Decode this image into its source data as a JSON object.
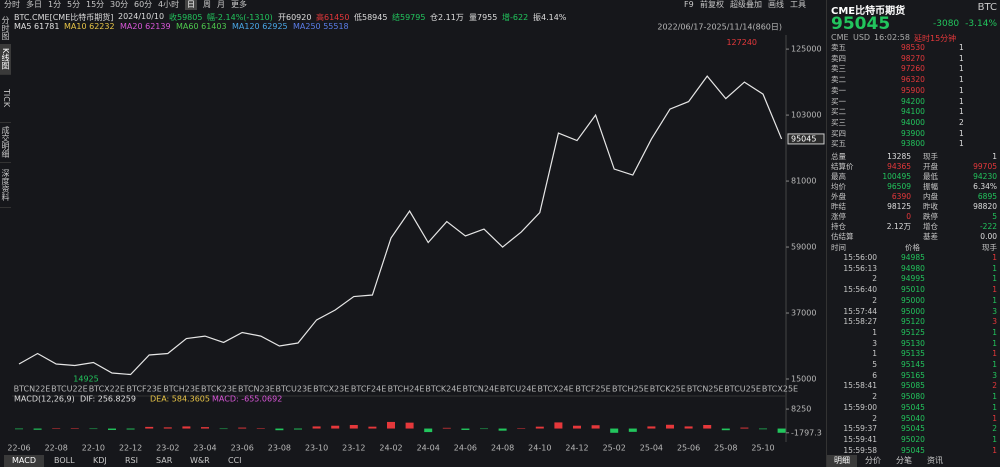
{
  "toolbar": {
    "periods": [
      "分时",
      "多日",
      "1分",
      "5分",
      "15分",
      "30分",
      "60分",
      "4小时",
      "日",
      "周",
      "月",
      "更多"
    ],
    "tools": [
      "F9",
      "前复权",
      "超级叠加",
      "画线",
      "工具"
    ]
  },
  "side_tabs": [
    "分时图",
    "K线图",
    "TICK",
    "成交明细",
    "深度资料"
  ],
  "info_line": [
    "BTC.CME[CME比特币期货]",
    "2024/10/10",
    "收59805",
    "幅-2.14%(-1310)",
    "开60920",
    "高61450",
    "低58945",
    "结59795",
    "仓2.11万",
    "量7955",
    "增-622",
    "振4.14%"
  ],
  "ma_line": [
    "MA5 61781",
    "MA10 62232",
    "MA20 62139",
    "MA60 61403",
    "MA120 62925",
    "MA250 55518"
  ],
  "chart_data": [
    {
      "type": "line",
      "date_range": "2022/06/17-2025/11/14(860日)",
      "color": "#e6e6e6",
      "categories": [
        "22-06",
        null,
        "22-08",
        null,
        "22-10",
        null,
        "22-12",
        null,
        "23-02",
        null,
        "23-04",
        null,
        "23-06",
        null,
        "23-08",
        null,
        "23-10",
        null,
        "23-12",
        null,
        "24-02",
        null,
        "24-04",
        null,
        "24-06",
        null,
        "24-08",
        null,
        "24-10",
        null,
        "24-12",
        null,
        "25-02",
        null,
        "25-04",
        null,
        "25-06",
        null,
        "25-08",
        null,
        "25-10",
        null
      ],
      "values": [
        20000,
        23500,
        20000,
        19500,
        20500,
        17000,
        16500,
        23000,
        23500,
        28500,
        29300,
        27200,
        30500,
        29300,
        26000,
        27000,
        34700,
        38000,
        42500,
        43000,
        62000,
        71000,
        60500,
        67500,
        62700,
        65000,
        59000,
        64000,
        70500,
        97000,
        94500,
        103000,
        85000,
        83000,
        95000,
        105000,
        107500,
        116000,
        108500,
        114000,
        110000,
        95045
      ],
      "contracts": [
        "BTCN22E",
        "BTCU22E",
        "BTCX22E",
        "BTCF23E",
        "BTCH23E",
        "BTCK23E",
        "BTCN23E",
        "BTCU23E",
        "BTCX23E",
        "BTCF24E",
        "BTCH24E",
        "BTCK24E",
        "BTCN24E",
        "BTCU24E",
        "BTCX24E",
        "BTCF25E",
        "BTCH25E",
        "BTCK25E",
        "BTCN25E",
        "BTCU25E",
        "BTCX25E"
      ],
      "high_label": 127240,
      "low_label": 14925,
      "last_price": 95045,
      "ylim": [
        13000,
        129700
      ],
      "yticks": [
        15000,
        37000,
        59000,
        81000,
        103000,
        125000
      ]
    },
    {
      "type": "bar",
      "title": "MACD(12,26,9)",
      "legend": [
        "DIF: 256.8259",
        "DEA: 584.3605",
        "MACD: -655.0692"
      ],
      "values": [
        -300,
        -500,
        200,
        150,
        -200,
        -600,
        -400,
        700,
        500,
        900,
        600,
        -200,
        400,
        100,
        -700,
        -400,
        900,
        1200,
        1500,
        800,
        2800,
        2500,
        -1500,
        300,
        -600,
        -200,
        -900,
        200,
        800,
        2600,
        1200,
        1400,
        -1800,
        -1400,
        900,
        1600,
        900,
        1500,
        -700,
        400,
        -300,
        -1797.3
      ],
      "ylim": [
        -5700,
        10400
      ],
      "yticks": [
        8250,
        -1797.3
      ]
    }
  ],
  "indicator_tabs": [
    "MACD",
    "BOLL",
    "KDJ",
    "RSI",
    "SAR",
    "W&R",
    "CCI"
  ],
  "quote": {
    "name": "CME比特币期货",
    "code": "BTC",
    "price": 95045,
    "change": -3080,
    "change_pct": "-3.14%",
    "info": [
      "CME",
      "USD",
      "16:02:58",
      "延时15分钟"
    ],
    "book": [
      [
        "卖五",
        98530,
        1
      ],
      [
        "卖四",
        98270,
        1
      ],
      [
        "卖三",
        97260,
        1
      ],
      [
        "卖二",
        96320,
        1
      ],
      [
        "卖一",
        95900,
        1
      ],
      [
        "买一",
        94200,
        1
      ],
      [
        "买二",
        94100,
        1
      ],
      [
        "买三",
        94000,
        2
      ],
      [
        "买四",
        93900,
        1
      ],
      [
        "买五",
        93800,
        1
      ]
    ],
    "stats": [
      [
        "总量",
        13285,
        "现手",
        1
      ],
      [
        "结算价",
        94365,
        "开盘",
        99705
      ],
      [
        "最高",
        100495,
        "最低",
        94230
      ],
      [
        "均价",
        96509,
        "振幅",
        "6.34%"
      ],
      [
        "外盘",
        6390,
        "内盘",
        6895
      ],
      [
        "昨结",
        98125,
        "昨收",
        98820
      ],
      [
        "涨停",
        0,
        "跌停",
        5
      ],
      [
        "持仓",
        "2.12万",
        "增仓",
        -222
      ],
      [
        "估结算",
        null,
        "基差",
        "0.00"
      ]
    ],
    "tick_header": [
      "时间",
      "价格",
      "现手"
    ],
    "ticks": [
      [
        "15:56:00",
        94985,
        1
      ],
      [
        "15:56:13",
        94980,
        1
      ],
      [
        "2",
        94995,
        1
      ],
      [
        "15:56:40",
        95010,
        1
      ],
      [
        "2",
        95000,
        1
      ],
      [
        "15:57:44",
        95000,
        3
      ],
      [
        "15:58:27",
        95120,
        3
      ],
      [
        "1",
        95125,
        1
      ],
      [
        "3",
        95130,
        1
      ],
      [
        "1",
        95135,
        1
      ],
      [
        "5",
        95145,
        1
      ],
      [
        "6",
        95165,
        3
      ],
      [
        "15:58:41",
        95085,
        2
      ],
      [
        "2",
        95080,
        1
      ],
      [
        "15:59:00",
        95045,
        1
      ],
      [
        "2",
        95040,
        1
      ],
      [
        "15:59:37",
        95045,
        2
      ],
      [
        "15:59:41",
        95020,
        1
      ],
      [
        "15:59:58",
        95045,
        1
      ]
    ],
    "tabs": [
      "明细",
      "分价",
      "分笔",
      "资讯"
    ]
  }
}
